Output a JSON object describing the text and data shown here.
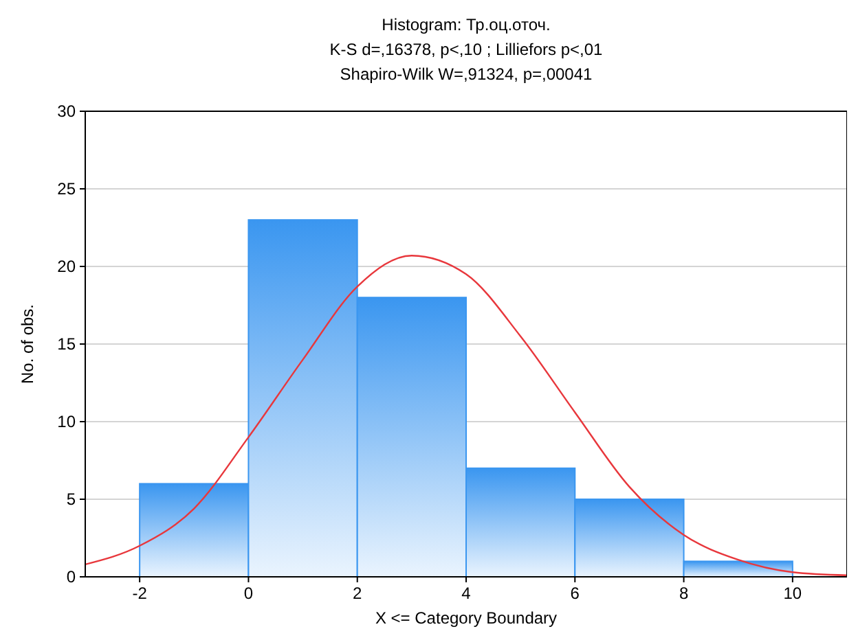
{
  "chart_data": {
    "type": "histogram",
    "title": "Histogram: Тр.оц.оточ.",
    "subtitle": "K-S d=,16378, p<,10 ; Lilliefors p<,01\nShapiro-Wilk W=,91324, p=,00041",
    "xlabel": "X <= Category Boundary",
    "ylabel": "No. of obs.",
    "bins": [
      -2,
      0,
      2,
      4,
      6,
      8,
      10
    ],
    "values": [
      6,
      23,
      18,
      7,
      5,
      1
    ],
    "color": "#3a96f0",
    "series": [
      {
        "type": "line",
        "color": "#e8373c",
        "x": [
          -3,
          -2,
          -1,
          0,
          1,
          2,
          3,
          4,
          5,
          6,
          7,
          8,
          9,
          10,
          11
        ],
        "values": [
          0.8,
          2,
          4.4,
          9,
          14,
          18.7,
          20.7,
          19.5,
          15.5,
          10.6,
          5.8,
          2.7,
          1.1,
          0.3,
          0.1
        ]
      }
    ],
    "xlim": [
      -3,
      11
    ],
    "xticks": [
      -2,
      0,
      2,
      4,
      6,
      8,
      10
    ],
    "ylim": [
      0,
      30
    ],
    "yticks": [
      0,
      5,
      10,
      15,
      20,
      25,
      30
    ],
    "grid": "y",
    "marker": "none",
    "line_style": "solid"
  }
}
